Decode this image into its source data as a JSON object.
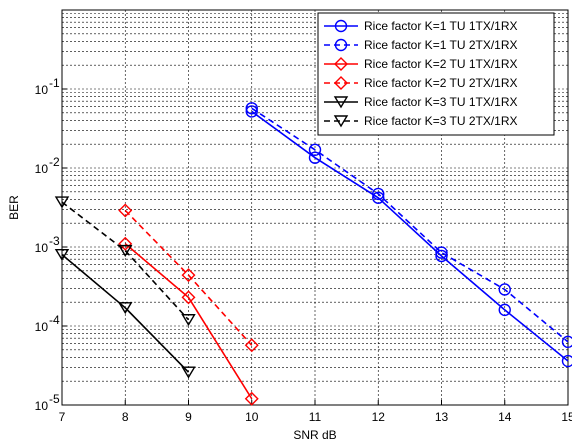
{
  "chart_data": {
    "type": "line",
    "title": "",
    "xlabel": "SNR dB",
    "ylabel": "BER",
    "xlim": [
      7,
      15
    ],
    "ylim": [
      1e-05,
      1
    ],
    "yscale": "log",
    "grid": true,
    "legend_position": "top-right",
    "x_ticks": [
      "7",
      "8",
      "9",
      "10",
      "11",
      "12",
      "13",
      "14",
      "15"
    ],
    "y_ticks": [
      {
        "base": "10",
        "exp": "-5"
      },
      {
        "base": "10",
        "exp": "-4"
      },
      {
        "base": "10",
        "exp": "-3"
      },
      {
        "base": "10",
        "exp": "-2"
      },
      {
        "base": "10",
        "exp": "-1"
      }
    ],
    "series": [
      {
        "name": "Rice factor K=1 TU 1TX/1RX",
        "color": "#0000ff",
        "marker": "circle",
        "dash": "solid",
        "x": [
          10,
          11,
          12,
          13,
          14,
          15
        ],
        "y": [
          0.052,
          0.0135,
          0.0042,
          0.00077,
          0.00016,
          3.6e-05
        ]
      },
      {
        "name": "Rice factor K=1 TU 2TX/1RX",
        "color": "#0000ff",
        "marker": "circle",
        "dash": "dashed",
        "x": [
          10,
          11,
          12,
          13,
          14,
          15
        ],
        "y": [
          0.057,
          0.017,
          0.0047,
          0.00085,
          0.00029,
          6.3e-05
        ]
      },
      {
        "name": "Rice factor K=2 TU 1TX/1RX",
        "color": "#ff0000",
        "marker": "diamond",
        "dash": "solid",
        "x": [
          8,
          9,
          10
        ],
        "y": [
          0.0011,
          0.00023,
          1.2e-05
        ]
      },
      {
        "name": "Rice factor K=2 TU 2TX/1RX",
        "color": "#ff0000",
        "marker": "diamond",
        "dash": "dashed",
        "x": [
          8,
          9,
          10
        ],
        "y": [
          0.0029,
          0.00044,
          5.7e-05
        ]
      },
      {
        "name": "Rice factor K=3 TU 1TX/1RX",
        "color": "#000000",
        "marker": "triangle-down",
        "dash": "solid",
        "x": [
          7,
          8,
          9
        ],
        "y": [
          0.0008,
          0.00017,
          2.6e-05
        ]
      },
      {
        "name": "Rice factor K=3 TU 2TX/1RX",
        "color": "#000000",
        "marker": "triangle-down",
        "dash": "dashed",
        "x": [
          7,
          8,
          9
        ],
        "y": [
          0.0037,
          0.0009,
          0.00012
        ]
      }
    ]
  }
}
